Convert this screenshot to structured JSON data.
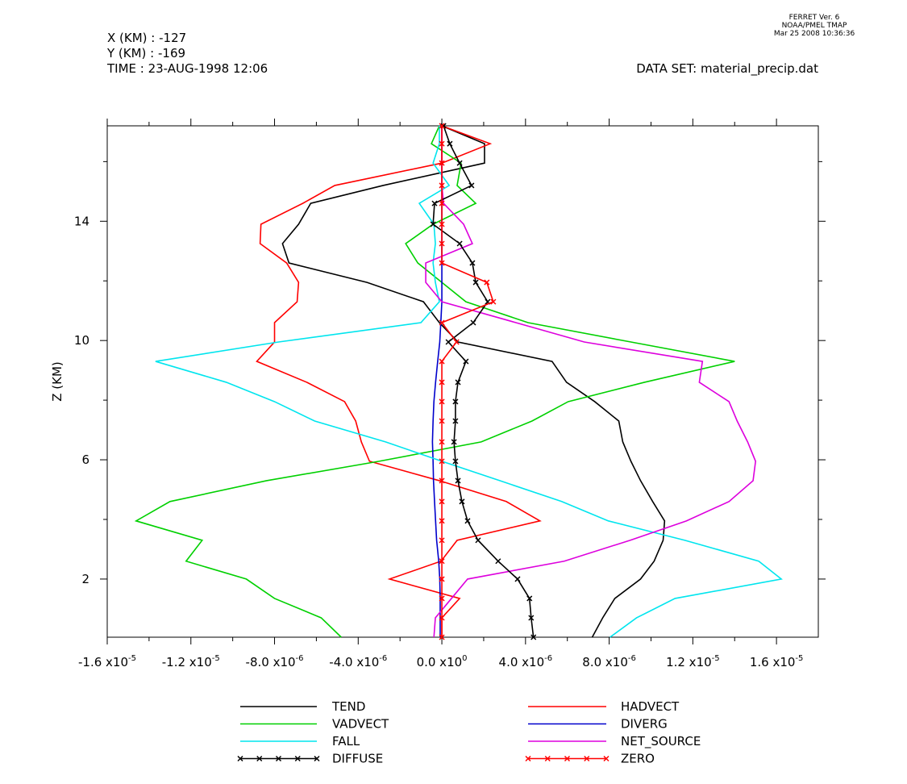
{
  "chart_data": {
    "type": "line",
    "orientation": "vertical-profile",
    "header": {
      "x_pos": "X (KM) : -127",
      "y_pos": "Y (KM) : -169",
      "time": "TIME : 23-AUG-1998 12:06",
      "dataset": "DATA SET: material_precip.dat",
      "version": "FERRET Ver. 6",
      "org": "NOAA/PMEL TMAP",
      "date": "Mar 25 2008 10:36:36"
    },
    "y_label": "Z (KM)",
    "y": [
      0.05,
      0.7,
      1.35,
      2.0,
      2.6,
      3.3,
      3.95,
      4.6,
      5.3,
      5.95,
      6.6,
      7.3,
      7.95,
      8.6,
      9.3,
      9.95,
      10.6,
      11.3,
      11.95,
      12.6,
      13.25,
      13.9,
      14.6,
      15.2,
      15.95,
      16.6,
      17.2
    ],
    "xlim": [
      -1.6e-05,
      1.8e-05
    ],
    "ylim": [
      0.05,
      17.2
    ],
    "xticks": [
      {
        "value": -1.6e-05,
        "label": "-1.6 x10",
        "exponent": "-5"
      },
      {
        "value": -1.2e-05,
        "label": "-1.2 x10",
        "exponent": "-5"
      },
      {
        "value": -8e-06,
        "label": "-8.0 x10",
        "exponent": "-6"
      },
      {
        "value": -4e-06,
        "label": "-4.0 x10",
        "exponent": "-6"
      },
      {
        "value": 0,
        "label": "0.0 x10",
        "exponent": "0"
      },
      {
        "value": 4e-06,
        "label": "4.0 x10",
        "exponent": "-6"
      },
      {
        "value": 8e-06,
        "label": "8.0 x10",
        "exponent": "-6"
      },
      {
        "value": 1.2e-05,
        "label": "1.2 x10",
        "exponent": "-5"
      },
      {
        "value": 1.6e-05,
        "label": "1.6 x10",
        "exponent": "-5"
      }
    ],
    "xminor_ticks": [
      -1.4e-05,
      -1e-05,
      -6e-06,
      -2e-06,
      2e-06,
      6e-06,
      1e-05,
      1.4e-05
    ],
    "yticks": [
      2,
      6,
      10,
      14
    ],
    "yminor_ticks": [
      4,
      8,
      12,
      16
    ],
    "series": [
      {
        "name": "TEND",
        "color": "#000000",
        "marker": false,
        "values": [
          7.19e-06,
          7.69e-06,
          8.27e-06,
          9.5e-06,
          1.015e-05,
          1.058e-05,
          1.065e-05,
          1.008e-05,
          9.5e-06,
          9.04e-06,
          8.65e-06,
          8.46e-06,
          7.31e-06,
          5.96e-06,
          5.27e-06,
          7.7e-07,
          -1.2e-07,
          -8.8e-07,
          -3.58e-06,
          -7.31e-06,
          -7.62e-06,
          -6.85e-06,
          -6.27e-06,
          -2.81e-06,
          2.04e-06,
          2.04e-06,
          0
        ]
      },
      {
        "name": "HADVECT",
        "color": "#ff0000",
        "marker": false,
        "values": [
          0,
          0,
          8.5e-07,
          -2.5e-06,
          -4e-08,
          7.3e-07,
          4.69e-06,
          3.08e-06,
          -1.2e-07,
          -3.46e-06,
          -3.85e-06,
          -4.12e-06,
          -4.65e-06,
          -6.46e-06,
          -8.85e-06,
          -8e-06,
          -8e-06,
          -6.92e-06,
          -6.85e-06,
          -7.42e-06,
          -8.69e-06,
          -8.65e-06,
          -6.65e-06,
          -5.12e-06,
          0,
          2.31e-06,
          0
        ]
      },
      {
        "name": "VADVECT",
        "color": "#00d000",
        "marker": false,
        "values": [
          -4.81e-06,
          -5.77e-06,
          -8e-06,
          -9.35e-06,
          -1.223e-05,
          -1.146e-05,
          -1.462e-05,
          -1.3e-05,
          -8.38e-06,
          -3e-06,
          1.88e-06,
          4.31e-06,
          6.04e-06,
          9.69e-06,
          1.4e-05,
          9.04e-06,
          4.12e-06,
          1.15e-06,
          0,
          -1.15e-06,
          -1.73e-06,
          -4.2e-07,
          1.62e-06,
          7.3e-07,
          9.2e-07,
          -5e-07,
          -1.2e-07
        ]
      },
      {
        "name": "DIVERG",
        "color": "#0000cc",
        "marker": false,
        "values": [
          -8e-08,
          -8e-08,
          -8e-08,
          -1e-07,
          -1.5e-07,
          -2.5e-07,
          -3e-07,
          -3.5e-07,
          -4e-07,
          -4.2e-07,
          -4.5e-07,
          -4.2e-07,
          -3.8e-07,
          -3e-07,
          -2e-07,
          -1e-07,
          -5e-08,
          0,
          0,
          0,
          0,
          0,
          0,
          0,
          0,
          0,
          0
        ]
      },
      {
        "name": "FALL",
        "color": "#00e5ee",
        "marker": false,
        "values": [
          8.04e-06,
          9.31e-06,
          1.115e-05,
          1.623e-05,
          1.515e-05,
          1.162e-05,
          7.96e-06,
          5.73e-06,
          2.77e-06,
          0,
          -2.69e-06,
          -6.08e-06,
          -8e-06,
          -1.031e-05,
          -1.369e-05,
          -7.81e-06,
          -1e-06,
          -1.2e-07,
          -3.1e-07,
          -4.2e-07,
          -3.1e-07,
          -3.8e-07,
          -1.08e-06,
          3.5e-07,
          -4.2e-07,
          -1.2e-07,
          -1.2e-07
        ]
      },
      {
        "name": "NET_SOURCE",
        "color": "#dd00dd",
        "marker": false,
        "values": [
          -3.8e-07,
          -3.1e-07,
          4.6e-07,
          1.23e-06,
          5.85e-06,
          9e-06,
          1.169e-05,
          1.373e-05,
          1.488e-05,
          1.5e-05,
          1.462e-05,
          1.412e-05,
          1.373e-05,
          1.231e-05,
          1.246e-05,
          6.81e-06,
          3.54e-06,
          0,
          -7.7e-07,
          -7.7e-07,
          1.46e-06,
          1.04e-06,
          8e-08,
          0,
          0,
          0,
          0
        ]
      },
      {
        "name": "DIFFUSE",
        "color": "#000000",
        "marker": true,
        "values": [
          4.38e-06,
          4.27e-06,
          4.19e-06,
          3.62e-06,
          2.69e-06,
          1.73e-06,
          1.23e-06,
          9.6e-07,
          7.7e-07,
          6.5e-07,
          5.8e-07,
          6.5e-07,
          6.5e-07,
          7.7e-07,
          1.15e-06,
          3.1e-07,
          1.5e-06,
          2.19e-06,
          1.62e-06,
          1.46e-06,
          8.5e-07,
          -4.2e-07,
          -3.5e-07,
          1.42e-06,
          8.5e-07,
          3.8e-07,
          8e-08
        ]
      },
      {
        "name": "ZERO",
        "color": "#ff0000",
        "marker": true,
        "values": [
          0,
          0,
          0,
          0,
          0,
          0,
          0,
          0,
          0,
          0,
          0,
          0,
          0,
          0,
          0,
          7e-07,
          0,
          2.46e-06,
          2.15e-06,
          0,
          0,
          0,
          0,
          0,
          0,
          0,
          0
        ]
      }
    ]
  }
}
